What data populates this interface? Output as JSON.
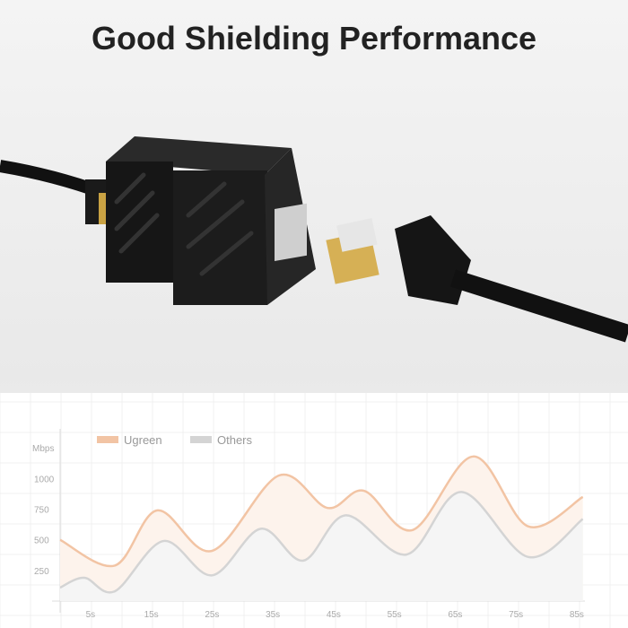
{
  "title": "Good Shielding Performance",
  "chart_data": {
    "type": "area",
    "title": "",
    "xlabel": "",
    "ylabel": "Mbps",
    "xlim": [
      0,
      86
    ],
    "ylim": [
      0,
      1250
    ],
    "x_ticks": [
      "5s",
      "15s",
      "25s",
      "35s",
      "45s",
      "55s",
      "65s",
      "75s",
      "85s"
    ],
    "y_ticks": [
      "250",
      "500",
      "750",
      "1000"
    ],
    "grid": true,
    "legend": "top-left",
    "series": [
      {
        "name": "Ugreen",
        "color": "#f2c4a4",
        "points": [
          [
            0,
            500
          ],
          [
            9,
            290
          ],
          [
            16,
            740
          ],
          [
            25,
            410
          ],
          [
            36,
            1025
          ],
          [
            44,
            760
          ],
          [
            50,
            900
          ],
          [
            58,
            580
          ],
          [
            68,
            1180
          ],
          [
            77,
            610
          ],
          [
            86,
            850
          ]
        ]
      },
      {
        "name": "Others",
        "color": "#d4d4d4",
        "points": [
          [
            0,
            110
          ],
          [
            4,
            190
          ],
          [
            9,
            80
          ],
          [
            17,
            490
          ],
          [
            25,
            210
          ],
          [
            33,
            590
          ],
          [
            40,
            330
          ],
          [
            47,
            700
          ],
          [
            57,
            380
          ],
          [
            66,
            890
          ],
          [
            77,
            360
          ],
          [
            86,
            670
          ]
        ]
      }
    ]
  }
}
